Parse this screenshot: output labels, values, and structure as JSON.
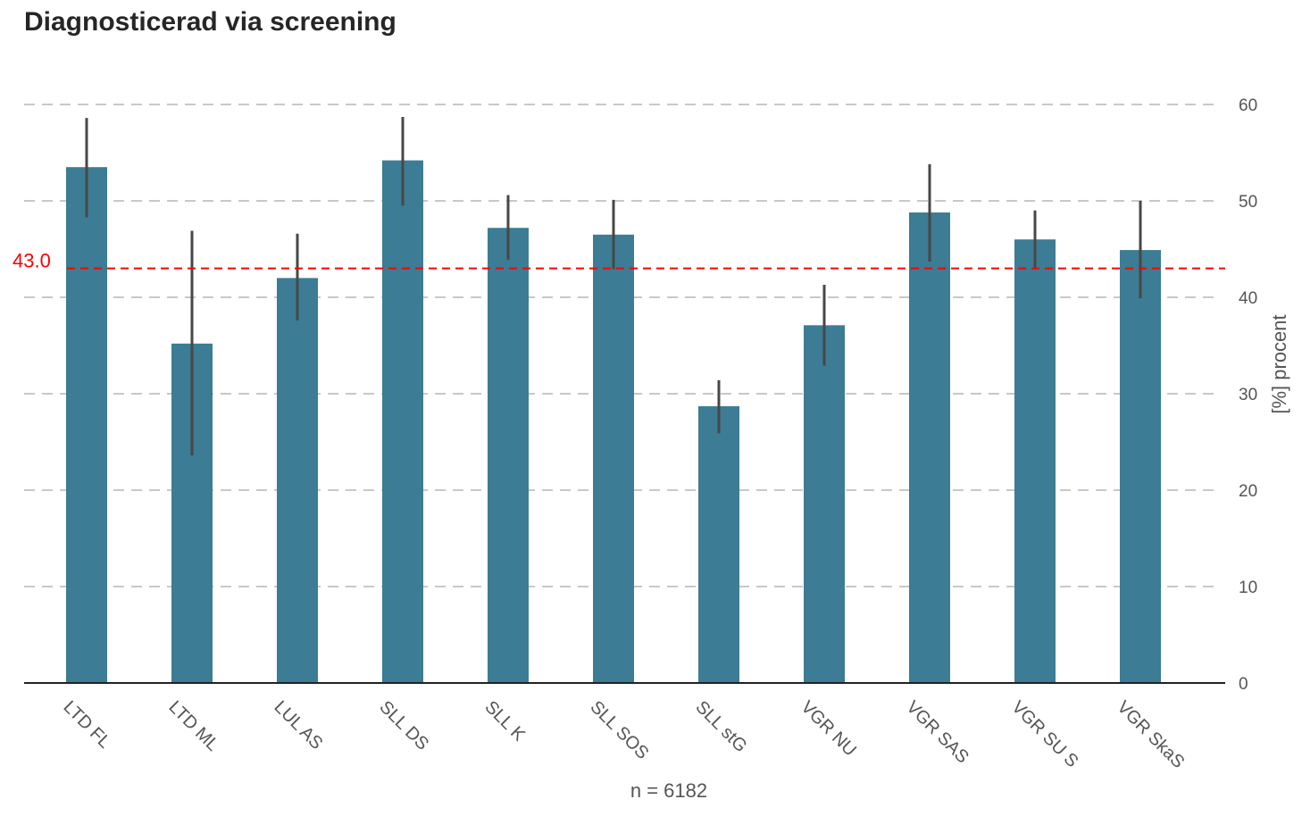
{
  "chart_data": {
    "type": "bar",
    "title": "Diagnosticerad via screening",
    "ylabel": "[%] procent",
    "note": "n = 6182",
    "y_axis_side": "right",
    "ylim": [
      0,
      60
    ],
    "yticks": [
      0,
      10,
      20,
      30,
      40,
      50,
      60
    ],
    "grid": true,
    "categories": [
      "LTD FL",
      "LTD ML",
      "LUL AS",
      "SLL DS",
      "SLL K",
      "SLL SOS",
      "SLL stG",
      "VGR NU",
      "VGR SAS",
      "VGR SU S",
      "VGR SkaS"
    ],
    "values": [
      53.5,
      35.2,
      42.0,
      54.2,
      47.2,
      46.5,
      28.7,
      37.1,
      48.8,
      46.0,
      44.9
    ],
    "error_low": [
      48.3,
      23.6,
      37.6,
      49.5,
      43.9,
      42.9,
      25.9,
      32.9,
      43.7,
      43.0,
      39.9
    ],
    "error_high": [
      58.6,
      46.9,
      46.6,
      58.7,
      50.6,
      50.1,
      31.4,
      41.3,
      53.8,
      49.0,
      50.0
    ],
    "reference_line": {
      "value": 43.0,
      "label": "43.0"
    },
    "colors": {
      "bar": "#3c7c94",
      "error": "#474747",
      "reference": "#ff0000",
      "grid": "#c8c8c8",
      "text": "#555555",
      "title": "#262626"
    }
  }
}
